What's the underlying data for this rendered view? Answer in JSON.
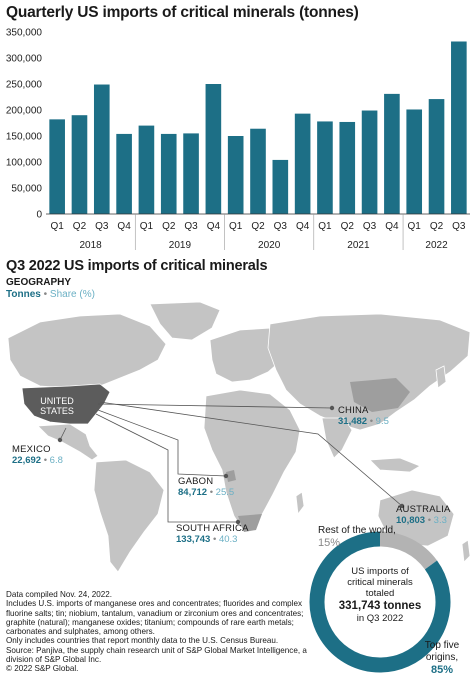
{
  "chart_title": "Quarterly US imports of critical minerals (tonnes)",
  "chart_data": {
    "type": "bar",
    "categories": [
      "Q1",
      "Q2",
      "Q3",
      "Q4",
      "Q1",
      "Q2",
      "Q3",
      "Q4",
      "Q1",
      "Q2",
      "Q3",
      "Q4",
      "Q1",
      "Q2",
      "Q3",
      "Q4",
      "Q1",
      "Q2",
      "Q3"
    ],
    "years": [
      {
        "label": "2018",
        "count": 4
      },
      {
        "label": "2019",
        "count": 4
      },
      {
        "label": "2020",
        "count": 4
      },
      {
        "label": "2021",
        "count": 4
      },
      {
        "label": "2022",
        "count": 3
      }
    ],
    "values": [
      182000,
      190000,
      249000,
      154000,
      170000,
      154000,
      155000,
      250000,
      150000,
      164000,
      104000,
      193000,
      178000,
      177000,
      199000,
      231000,
      201000,
      221000,
      331743
    ],
    "ylim": [
      0,
      350000
    ],
    "yticks": [
      0,
      50000,
      100000,
      150000,
      200000,
      250000,
      300000,
      350000
    ],
    "ytick_labels": [
      "0",
      "50,000",
      "100,000",
      "150,000",
      "200,000",
      "250,000",
      "300,000",
      "350,000"
    ],
    "bar_color": "#1d6f86",
    "grid": false
  },
  "map": {
    "title": "Q3 2022 US imports of critical minerals",
    "geography_label": "GEOGRAPHY",
    "legend_tonnes": "Tonnes",
    "legend_share": "Share (%)",
    "us_label": "UNITED STATES",
    "countries": [
      {
        "name": "CHINA",
        "tonnes": "31,482",
        "share": "9.5"
      },
      {
        "name": "MEXICO",
        "tonnes": "22,692",
        "share": "6.8"
      },
      {
        "name": "GABON",
        "tonnes": "84,712",
        "share": "25.5"
      },
      {
        "name": "SOUTH AFRICA",
        "tonnes": "133,743",
        "share": "40.3"
      },
      {
        "name": "AUSTRALIA",
        "tonnes": "10,803",
        "share": "3.3"
      }
    ]
  },
  "donut": {
    "rest_label": "Rest of the world,",
    "rest_pct": "15%",
    "rest_value": 15,
    "top_label": "Top five origins,",
    "top_pct": "85%",
    "top_value": 85,
    "center_line1": "US imports of",
    "center_line2": "critical minerals",
    "center_line3": "totaled",
    "center_total": "331,743 tonnes",
    "center_period": "in Q3 2022",
    "color_top": "#1d6f86",
    "color_rest": "#b3b3b3"
  },
  "notes": [
    "Data compiled Nov. 24, 2022.",
    "Includes U.S. imports of manganese ores and concentrates; fluorides and complex fluorine salts; tin; niobium, tantalum, vanadium or zirconium ores and concentrates; graphite (natural); manganese oxides; titanium; compounds of rare earth metals; carbonates and sulphates, among others.",
    "Only includes countries that report monthly data to the U.S. Census Bureau.",
    "Source: Panjiva, the supply chain research unit of S&P Global Market Intelligence, a division of S&P Global Inc.",
    "© 2022 S&P Global."
  ]
}
